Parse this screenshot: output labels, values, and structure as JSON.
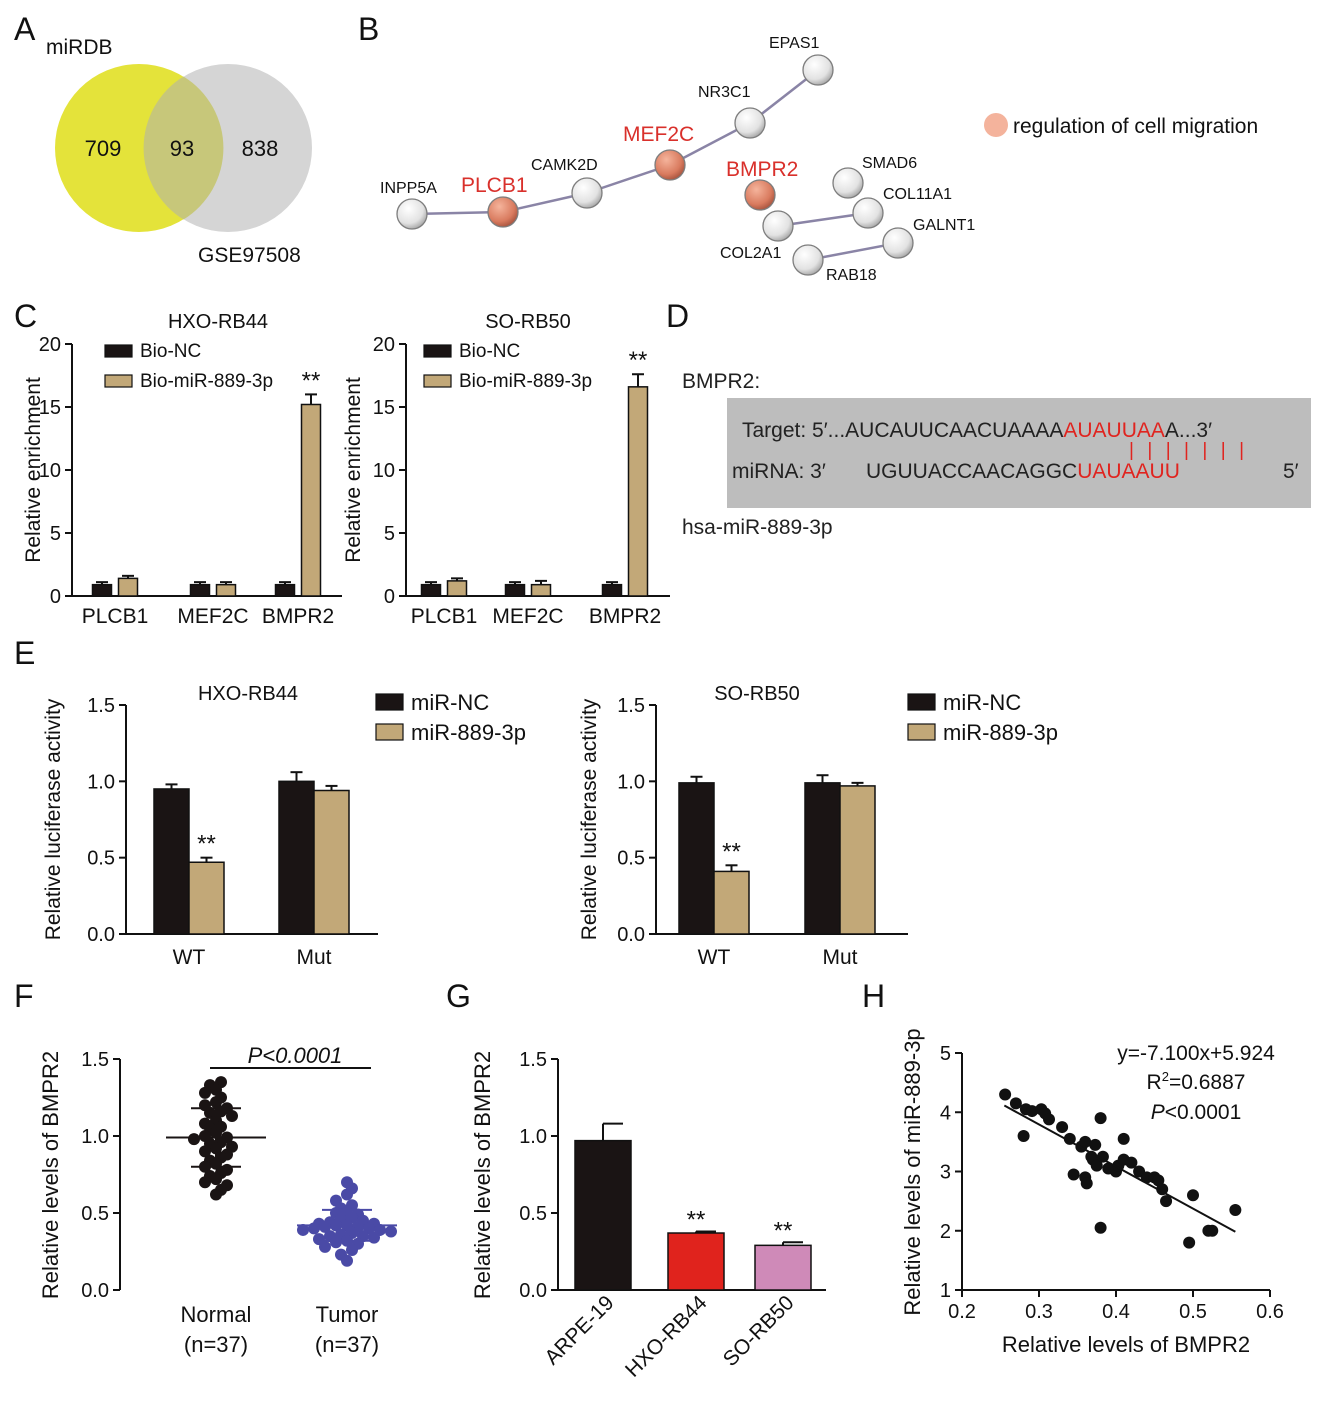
{
  "panel_letters": [
    "A",
    "B",
    "C",
    "D",
    "E",
    "F",
    "G",
    "H"
  ],
  "colors": {
    "black_bar": "#1a1414",
    "tan_bar": "#c2a878",
    "venn_left": "#e4e33a",
    "venn_right": "#d5d5d5",
    "highlight_red": "#e0241f",
    "normal_dots": "#1a1414",
    "tumor_dots": "#4a4aa6",
    "arpe_bar": "#1a1414",
    "hxo_bar": "#e0231d",
    "so_bar": "#cf8ab8"
  },
  "venn": {
    "left_label": "miRDB",
    "right_label": "GSE97508",
    "left_only": "709",
    "overlap": "93",
    "right_only": "838"
  },
  "network": {
    "legend": "regulation of cell migration",
    "nodes": {
      "inpp5a": "INPP5A",
      "plcb1": "PLCB1",
      "camk2d": "CAMK2D",
      "mef2c": "MEF2C",
      "nr3c1": "NR3C1",
      "epas1": "EPAS1",
      "bmpr2": "BMPR2",
      "smad6": "SMAD6",
      "col11a1": "COL11A1",
      "col2a1": "COL2A1",
      "rab18": "RAB18",
      "galnt1": "GALNT1"
    }
  },
  "binding": {
    "gene_label": "BMPR2:",
    "target_prefix": "Target: 5′...AUCAUUCAACUAAAA",
    "target_site": "AUAUUAA",
    "target_suffix": "A...3′",
    "pairs": "| | | | | | |",
    "mirna_prefix": "miRNA: 3′",
    "mirna_seq": "UGUUACCAACAGGC",
    "mirna_site": "UAUAAUU",
    "mirna_suffix": "5′",
    "mirna_name": "hsa-miR-889-3p"
  },
  "chart_data": [
    {
      "panel": "C",
      "type": "bar",
      "title": "HXO-RB44",
      "ylabel": "Relative enrichment",
      "categories": [
        "PLCB1",
        "MEF2C",
        "BMPR2"
      ],
      "ylim": [
        0,
        20
      ],
      "yticks": [
        "0",
        "5",
        "10",
        "15",
        "20"
      ],
      "series": [
        {
          "name": "Bio-NC",
          "values": [
            0.9,
            0.9,
            0.9
          ],
          "errors": [
            0.2,
            0.2,
            0.2
          ]
        },
        {
          "name": "Bio-miR-889-3p",
          "values": [
            1.4,
            0.9,
            15.2
          ],
          "errors": [
            0.2,
            0.2,
            0.8
          ]
        }
      ],
      "annotations": [
        {
          "category": "BMPR2",
          "series": 1,
          "text": "**"
        }
      ]
    },
    {
      "panel": "C",
      "type": "bar",
      "title": "SO-RB50",
      "ylabel": "Relative enrichment",
      "categories": [
        "PLCB1",
        "MEF2C",
        "BMPR2"
      ],
      "ylim": [
        0,
        20
      ],
      "yticks": [
        "0",
        "5",
        "10",
        "15",
        "20"
      ],
      "series": [
        {
          "name": "Bio-NC",
          "values": [
            0.9,
            0.9,
            0.9
          ],
          "errors": [
            0.2,
            0.2,
            0.2
          ]
        },
        {
          "name": "Bio-miR-889-3p",
          "values": [
            1.2,
            0.9,
            16.6
          ],
          "errors": [
            0.2,
            0.3,
            1.0
          ]
        }
      ],
      "annotations": [
        {
          "category": "BMPR2",
          "series": 1,
          "text": "**"
        }
      ]
    },
    {
      "panel": "E",
      "type": "bar",
      "title": "HXO-RB44",
      "ylabel": "Relative luciferase activity",
      "categories": [
        "WT",
        "Mut"
      ],
      "ylim": [
        0,
        1.5
      ],
      "yticks": [
        "0.0",
        "0.5",
        "1.0",
        "1.5"
      ],
      "series": [
        {
          "name": "miR-NC",
          "values": [
            0.95,
            1.0
          ],
          "errors": [
            0.03,
            0.06
          ]
        },
        {
          "name": "miR-889-3p",
          "values": [
            0.47,
            0.94
          ],
          "errors": [
            0.03,
            0.03
          ]
        }
      ],
      "annotations": [
        {
          "category": "WT",
          "series": 1,
          "text": "**"
        }
      ]
    },
    {
      "panel": "E",
      "type": "bar",
      "title": "SO-RB50",
      "ylabel": "Relative luciferase activity",
      "categories": [
        "WT",
        "Mut"
      ],
      "ylim": [
        0,
        1.5
      ],
      "yticks": [
        "0.0",
        "0.5",
        "1.0",
        "1.5"
      ],
      "series": [
        {
          "name": "miR-NC",
          "values": [
            0.99,
            0.99
          ],
          "errors": [
            0.04,
            0.05
          ]
        },
        {
          "name": "miR-889-3p",
          "values": [
            0.41,
            0.97
          ],
          "errors": [
            0.04,
            0.02
          ]
        }
      ],
      "annotations": [
        {
          "category": "WT",
          "series": 1,
          "text": "**"
        }
      ]
    },
    {
      "panel": "F",
      "type": "scatter",
      "ylabel": "Relative levels of BMPR2",
      "categories": [
        "Normal\n(n=37)",
        "Tumor\n(n=37)"
      ],
      "category_lines": [
        [
          "Normal",
          "(n=37)"
        ],
        [
          "Tumor",
          "(n=37)"
        ]
      ],
      "ylim": [
        0,
        1.5
      ],
      "yticks": [
        "0.0",
        "0.5",
        "1.0",
        "1.5"
      ],
      "annotation": "P<0.0001",
      "groups": [
        {
          "name": "Normal",
          "mean": 0.99,
          "sd": 0.19,
          "values": [
            1.35,
            1.33,
            1.3,
            1.28,
            1.25,
            1.22,
            1.2,
            1.18,
            1.16,
            1.15,
            1.13,
            1.1,
            1.08,
            1.06,
            1.05,
            1.02,
            1.0,
            0.99,
            0.98,
            0.96,
            0.95,
            0.93,
            0.92,
            0.9,
            0.88,
            0.86,
            0.84,
            0.82,
            0.8,
            0.78,
            0.76,
            0.74,
            0.72,
            0.7,
            0.68,
            0.65,
            0.62
          ]
        },
        {
          "name": "Tumor",
          "mean": 0.42,
          "sd": 0.1,
          "values": [
            0.7,
            0.66,
            0.62,
            0.58,
            0.55,
            0.53,
            0.51,
            0.5,
            0.49,
            0.47,
            0.46,
            0.45,
            0.44,
            0.43,
            0.43,
            0.42,
            0.42,
            0.41,
            0.41,
            0.4,
            0.4,
            0.39,
            0.39,
            0.38,
            0.37,
            0.36,
            0.35,
            0.35,
            0.34,
            0.33,
            0.32,
            0.31,
            0.3,
            0.28,
            0.26,
            0.23,
            0.19
          ]
        }
      ]
    },
    {
      "panel": "G",
      "type": "bar",
      "ylabel": "Relative levels of BMPR2",
      "categories": [
        "ARPE-19",
        "HXO-RB44",
        "SO-RB50"
      ],
      "ylim": [
        0,
        1.5
      ],
      "yticks": [
        "0.0",
        "0.5",
        "1.0",
        "1.5"
      ],
      "values": [
        0.97,
        0.37,
        0.29
      ],
      "errors": [
        0.11,
        0.01,
        0.02
      ],
      "annotations": [
        {
          "category": "HXO-RB44",
          "text": "**"
        },
        {
          "category": "SO-RB50",
          "text": "**"
        }
      ]
    },
    {
      "panel": "H",
      "type": "scatter",
      "xlabel": "Relative levels of BMPR2",
      "ylabel": "Relative levels of miR-889-3p",
      "xlim": [
        0.2,
        0.6
      ],
      "ylim": [
        1,
        5
      ],
      "xticks": [
        "0.2",
        "0.3",
        "0.4",
        "0.5",
        "0.6"
      ],
      "yticks": [
        "1",
        "2",
        "3",
        "4",
        "5"
      ],
      "equation": "y=-7.100x+5.924",
      "r2_prefix": "R",
      "r2_sup": "2",
      "r2_value": "=0.6887",
      "p_prefix": "P",
      "p_value": "<0.0001",
      "fit": {
        "slope": -7.1,
        "intercept": 5.924,
        "x_range": [
          0.255,
          0.555
        ]
      },
      "points": [
        [
          0.256,
          4.3
        ],
        [
          0.27,
          4.15
        ],
        [
          0.283,
          4.05
        ],
        [
          0.291,
          4.02
        ],
        [
          0.303,
          4.05
        ],
        [
          0.308,
          3.98
        ],
        [
          0.313,
          3.88
        ],
        [
          0.28,
          3.6
        ],
        [
          0.33,
          3.75
        ],
        [
          0.34,
          3.55
        ],
        [
          0.355,
          3.42
        ],
        [
          0.36,
          3.5
        ],
        [
          0.368,
          3.25
        ],
        [
          0.37,
          3.2
        ],
        [
          0.373,
          3.45
        ],
        [
          0.375,
          3.1
        ],
        [
          0.38,
          3.9
        ],
        [
          0.383,
          3.25
        ],
        [
          0.39,
          3.05
        ],
        [
          0.4,
          3.0
        ],
        [
          0.403,
          3.1
        ],
        [
          0.41,
          3.2
        ],
        [
          0.41,
          3.55
        ],
        [
          0.42,
          3.15
        ],
        [
          0.43,
          3.0
        ],
        [
          0.44,
          2.9
        ],
        [
          0.45,
          2.9
        ],
        [
          0.455,
          2.85
        ],
        [
          0.46,
          2.7
        ],
        [
          0.465,
          2.5
        ],
        [
          0.345,
          2.95
        ],
        [
          0.36,
          2.9
        ],
        [
          0.362,
          2.8
        ],
        [
          0.38,
          2.05
        ],
        [
          0.495,
          1.8
        ],
        [
          0.52,
          2.0
        ],
        [
          0.525,
          2.0
        ],
        [
          0.5,
          2.6
        ],
        [
          0.555,
          2.35
        ]
      ]
    }
  ]
}
